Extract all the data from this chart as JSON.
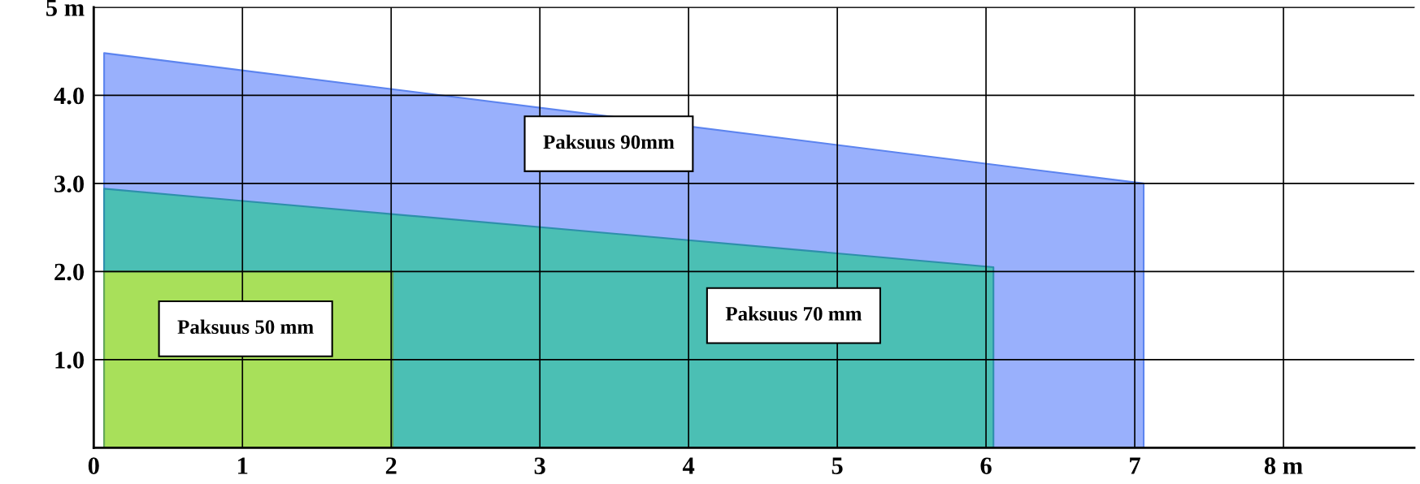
{
  "chart_data": {
    "type": "area",
    "xlim": [
      0,
      8.88
    ],
    "ylim": [
      0,
      5
    ],
    "xticks": [
      0,
      1,
      2,
      3,
      4,
      5,
      6,
      7,
      {
        "value": 8,
        "label": "8 m"
      }
    ],
    "yticks": [
      {
        "value": 1,
        "label": "1.0"
      },
      {
        "value": 2,
        "label": "2.0"
      },
      {
        "value": 3,
        "label": "3.0"
      },
      {
        "value": 4,
        "label": "4.0"
      },
      {
        "value": 5,
        "label": "5 m"
      }
    ],
    "grid": true,
    "series": [
      {
        "name": "Paksuus 90mm",
        "color": "#99b0fc",
        "x": [
          0.07,
          7.06
        ],
        "values": [
          4.48,
          3.0
        ]
      },
      {
        "name": "Paksuus 70 mm",
        "color": "#4bbfb4",
        "x": [
          0.07,
          6.05
        ],
        "values": [
          2.94,
          2.05
        ]
      },
      {
        "name": "Paksuus 50 mm",
        "color": "#a8e05a",
        "x": [
          0.07,
          2.01
        ],
        "values": [
          2.0,
          2.0
        ]
      }
    ]
  }
}
